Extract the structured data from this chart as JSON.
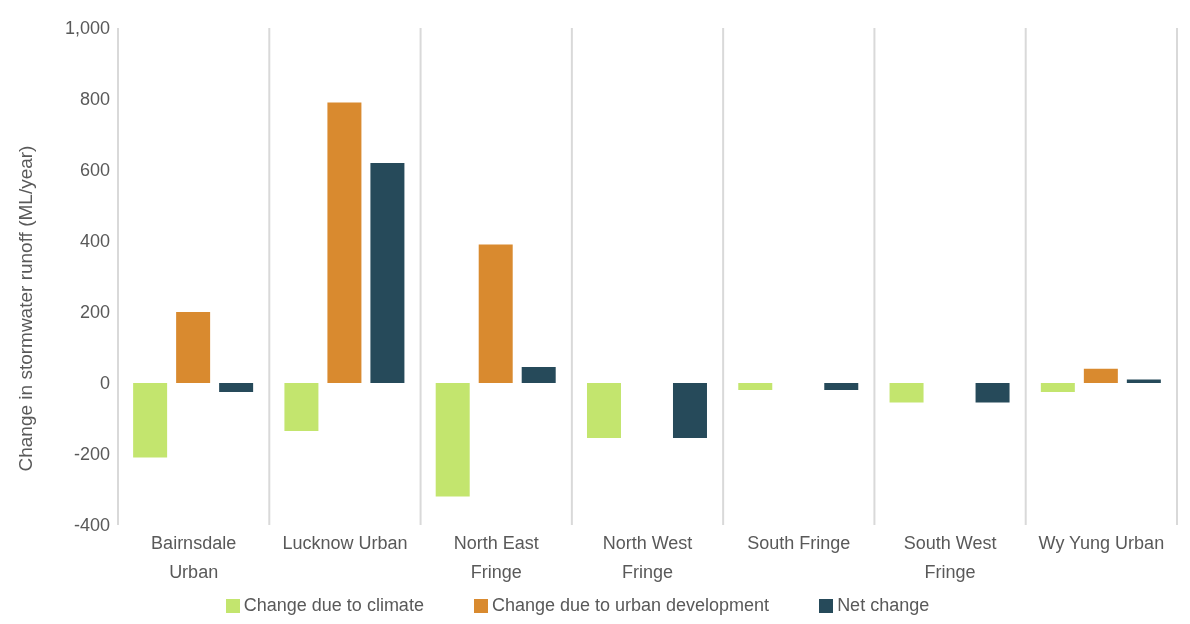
{
  "chart_data": {
    "type": "bar",
    "ylabel": "Change in stormwater runoff (ML/year)",
    "categories": [
      "Bairnsdale Urban",
      "Lucknow Urban",
      "North East Fringe",
      "North West Fringe",
      "South Fringe",
      "South West Fringe",
      "Wy Yung Urban"
    ],
    "series": [
      {
        "name": "Change due to climate",
        "color": "#c3e56e",
        "values": [
          -210,
          -135,
          -320,
          -155,
          -20,
          -55,
          -25
        ]
      },
      {
        "name": "Change due to urban development",
        "color": "#d98a2f",
        "values": [
          200,
          790,
          390,
          0,
          0,
          0,
          40
        ]
      },
      {
        "name": "Net change",
        "color": "#264a5a",
        "values": [
          -25,
          620,
          45,
          -155,
          -20,
          -55,
          10
        ]
      }
    ],
    "ylim": [
      -400,
      1000
    ],
    "yticks": [
      -400,
      -200,
      0,
      200,
      400,
      600,
      800,
      {
        "value": 1000,
        "label": "1,000"
      }
    ],
    "grid": "x",
    "legend": "bottom"
  }
}
